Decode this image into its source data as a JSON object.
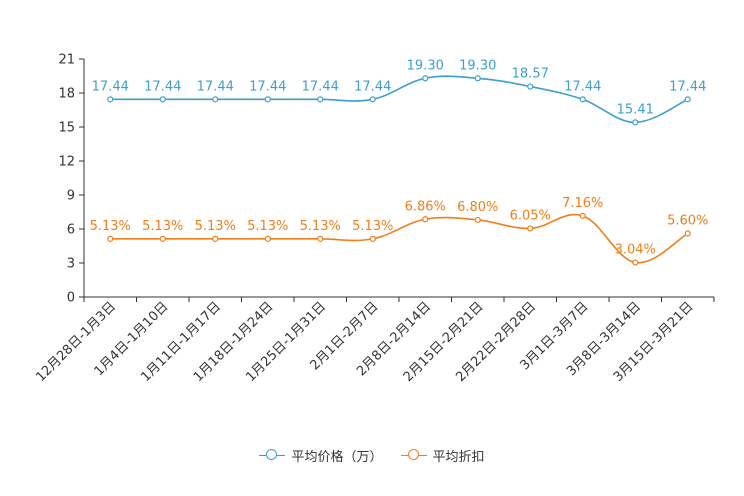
{
  "chart_data": {
    "type": "line",
    "title": "",
    "xlabel": "",
    "ylabel": "",
    "ylim": [
      0,
      21
    ],
    "yticks": [
      0,
      3,
      6,
      9,
      12,
      15,
      18,
      21
    ],
    "grid": false,
    "legend_position": "bottom",
    "categories": [
      "12月28日-1月3日",
      "1月4日-1月10日",
      "1月11日-1月17日",
      "1月18日-1月24日",
      "1月25日-1月31日",
      "2月1日-2月7日",
      "2月8日-2月14日",
      "2月15日-2月21日",
      "2月22日-2月28日",
      "3月1日-3月7日",
      "3月8日-3月14日",
      "3月15日-3月21日"
    ],
    "series": [
      {
        "name": "平均价格（万）",
        "color": "#3e9fcf",
        "values": [
          17.44,
          17.44,
          17.44,
          17.44,
          17.44,
          17.44,
          19.3,
          19.3,
          18.57,
          17.44,
          15.41,
          17.44
        ],
        "labels": [
          "17.44",
          "17.44",
          "17.44",
          "17.44",
          "17.44",
          "17.44",
          "19.30",
          "19.30",
          "18.57",
          "17.44",
          "15.41",
          "17.44"
        ]
      },
      {
        "name": "平均折扣",
        "color": "#f07f1b",
        "values": [
          5.13,
          5.13,
          5.13,
          5.13,
          5.13,
          5.13,
          6.86,
          6.8,
          6.05,
          7.16,
          3.04,
          5.6
        ],
        "labels": [
          "5.13%",
          "5.13%",
          "5.13%",
          "5.13%",
          "5.13%",
          "5.13%",
          "6.86%",
          "6.80%",
          "6.05%",
          "7.16%",
          "3.04%",
          "5.60%"
        ]
      }
    ]
  },
  "legend": {
    "items": [
      {
        "label": "平均价格（万）",
        "color": "#3e9fcf",
        "icon": "circle-line-icon"
      },
      {
        "label": "平均折扣",
        "color": "#f07f1b",
        "icon": "circle-line-icon"
      }
    ]
  }
}
